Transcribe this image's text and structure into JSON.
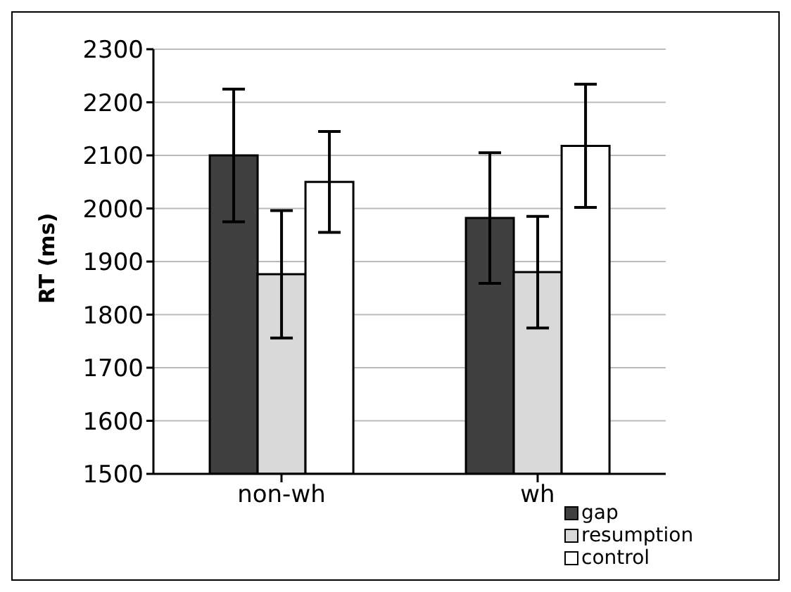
{
  "chart_data": {
    "type": "bar",
    "ylabel": "RT (ms)",
    "categories": [
      "non-wh",
      "wh"
    ],
    "series": [
      {
        "name": "gap",
        "color": "#404040",
        "values": [
          2100,
          1982
        ],
        "errors": [
          125,
          123
        ]
      },
      {
        "name": "resumption",
        "color": "#d9d9d9",
        "values": [
          1876,
          1880
        ],
        "errors": [
          120,
          105
        ]
      },
      {
        "name": "control",
        "color": "#ffffff",
        "values": [
          2050,
          2118
        ],
        "errors": [
          95,
          116
        ]
      }
    ],
    "ylim": [
      1500,
      2300
    ],
    "yticks": [
      1500,
      1600,
      1700,
      1800,
      1900,
      2000,
      2100,
      2200,
      2300
    ],
    "grid": "y",
    "legend": "bottom right"
  }
}
